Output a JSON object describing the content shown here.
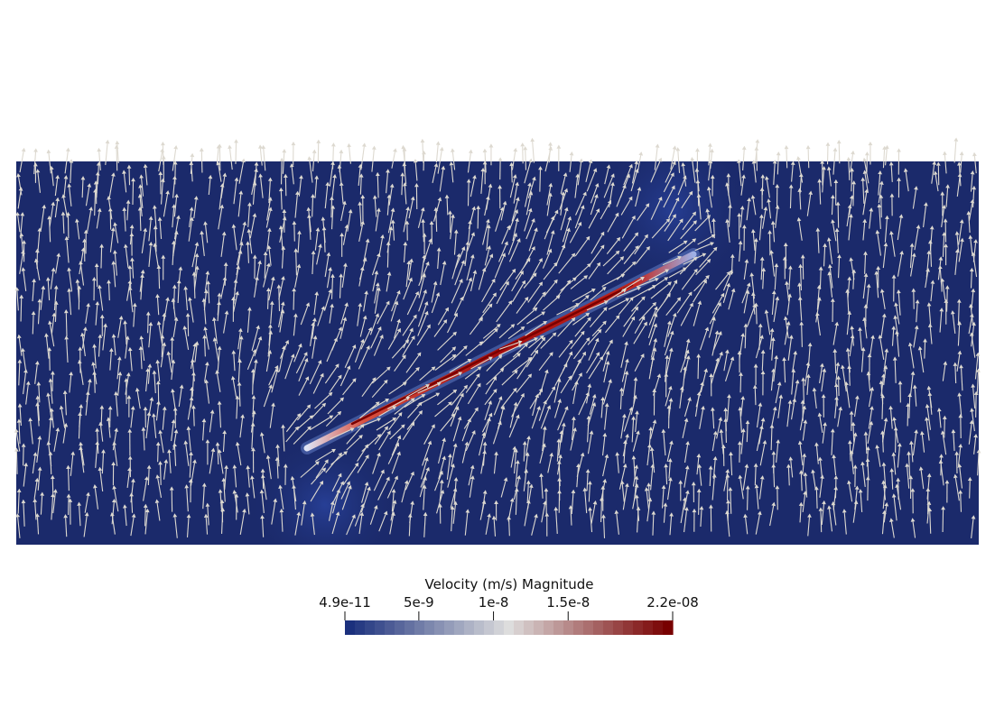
{
  "chart_data": {
    "type": "heatmap",
    "subtype": "vector-field",
    "colorbar": {
      "title": "Velocity (m/s) Magnitude",
      "min_label": "4.9e-11",
      "max_label": "2.2e-08",
      "range": [
        4.9e-11,
        2.2e-08
      ],
      "colormap": "cool-to-warm",
      "ticks": [
        {
          "value": 4.9e-11,
          "label": "4.9e-11"
        },
        {
          "value": 5e-09,
          "label": "5e-9"
        },
        {
          "value": 1e-08,
          "label": "1e-8"
        },
        {
          "value": 1.5e-08,
          "label": "1.5e-8"
        },
        {
          "value": 2.2e-08,
          "label": "2.2e-08"
        }
      ]
    },
    "background_magnitude": 4.9e-11,
    "feature": {
      "kind": "diagonal high-velocity band",
      "magnitude": 2.2e-08
    },
    "glyphs": {
      "kind": "arrow",
      "dominant_direction": "up",
      "color": "#ddd9d0"
    }
  },
  "colors": {
    "cold": "#1b2a6b",
    "hot": "#7a0000",
    "field_background": "#1b2a6b",
    "arrow": "#ddd9d0"
  }
}
